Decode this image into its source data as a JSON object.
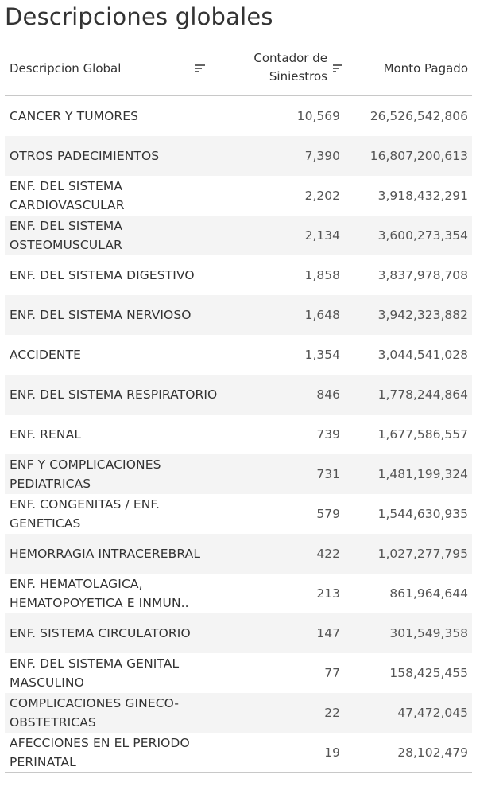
{
  "title": "Descripciones globales",
  "columns": {
    "descripcion": "Descripcion Global",
    "contador": "Contador de Siniestros",
    "monto": "Monto Pagado"
  },
  "rows": [
    {
      "desc": "CANCER Y TUMORES",
      "count": "10,569",
      "monto": "26,526,542,806"
    },
    {
      "desc": "OTROS PADECIMIENTOS",
      "count": "7,390",
      "monto": "16,807,200,613"
    },
    {
      "desc": "ENF. DEL SISTEMA CARDIOVASCULAR",
      "count": "2,202",
      "monto": "3,918,432,291"
    },
    {
      "desc": "ENF. DEL SISTEMA OSTEOMUSCULAR",
      "count": "2,134",
      "monto": "3,600,273,354"
    },
    {
      "desc": "ENF. DEL SISTEMA DIGESTIVO",
      "count": "1,858",
      "monto": "3,837,978,708"
    },
    {
      "desc": "ENF. DEL SISTEMA NERVIOSO",
      "count": "1,648",
      "monto": "3,942,323,882"
    },
    {
      "desc": "ACCIDENTE",
      "count": "1,354",
      "monto": "3,044,541,028"
    },
    {
      "desc": "ENF. DEL SISTEMA RESPIRATORIO",
      "count": "846",
      "monto": "1,778,244,864"
    },
    {
      "desc": "ENF. RENAL",
      "count": "739",
      "monto": "1,677,586,557"
    },
    {
      "desc": "ENF Y COMPLICACIONES PEDIATRICAS",
      "count": "731",
      "monto": "1,481,199,324"
    },
    {
      "desc": "ENF. CONGENITAS / ENF. GENETICAS",
      "count": "579",
      "monto": "1,544,630,935"
    },
    {
      "desc": "HEMORRAGIA INTRACEREBRAL",
      "count": "422",
      "monto": "1,027,277,795"
    },
    {
      "desc": "ENF. HEMATOLAGICA, HEMATOPOYETICA E INMUN..",
      "count": "213",
      "monto": "861,964,644"
    },
    {
      "desc": "ENF. SISTEMA CIRCULATORIO",
      "count": "147",
      "monto": "301,549,358"
    },
    {
      "desc": "ENF. DEL SISTEMA GENITAL MASCULINO",
      "count": "77",
      "monto": "158,425,455"
    },
    {
      "desc": "COMPLICACIONES GINECO-OBSTETRICAS",
      "count": "22",
      "monto": "47,472,045"
    },
    {
      "desc": "AFECCIONES EN EL PERIODO PERINATAL",
      "count": "19",
      "monto": "28,102,479"
    }
  ],
  "icons": {
    "sort": "sort-descending-icon"
  }
}
